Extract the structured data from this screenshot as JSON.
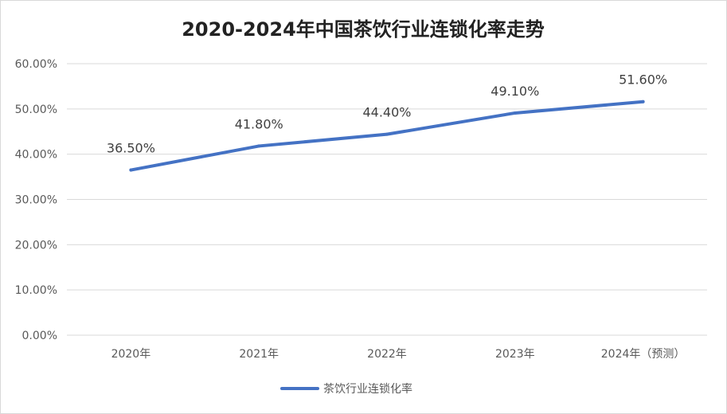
{
  "colors": {
    "series": "#4472C4",
    "grid": "#d9d9d9",
    "text": "#595959"
  },
  "chart_data": {
    "type": "line",
    "title": "2020-2024年中国茶饮行业连锁化率走势",
    "categories": [
      "2020年",
      "2021年",
      "2022年",
      "2023年",
      "2024年（预测）"
    ],
    "series": [
      {
        "name": "茶饮行业连锁化率",
        "values": [
          36.5,
          41.8,
          44.4,
          49.1,
          51.6
        ]
      }
    ],
    "data_labels": [
      "36.50%",
      "41.80%",
      "44.40%",
      "49.10%",
      "51.60%"
    ],
    "y_ticks": [
      "0.00%",
      "10.00%",
      "20.00%",
      "30.00%",
      "40.00%",
      "50.00%",
      "60.00%"
    ],
    "ylim": [
      0,
      60
    ],
    "y_step": 10,
    "grid": true,
    "legend": "bottom"
  }
}
